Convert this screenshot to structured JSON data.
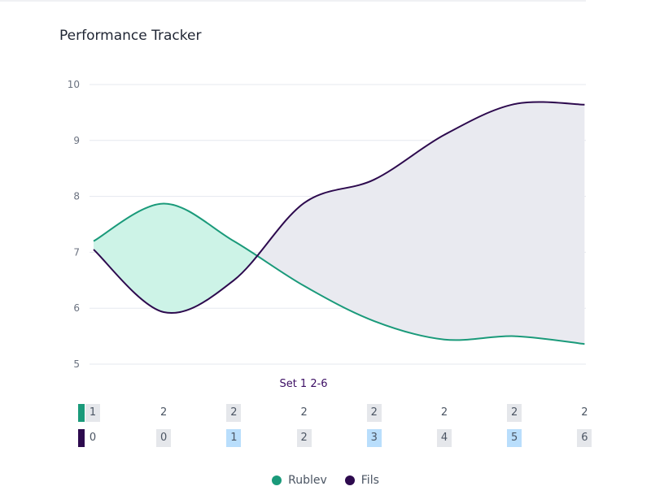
{
  "title": "Performance Tracker",
  "chart_data": {
    "type": "area",
    "title": "Performance Tracker",
    "xlabel": "Set 1 2-6",
    "ylim": [
      5,
      10
    ],
    "yticks": [
      5,
      6,
      7,
      8,
      9,
      10
    ],
    "series": [
      {
        "name": "Rublev",
        "color": "#1a9a7a",
        "values": [
          7.2,
          7.87,
          7.2,
          6.4,
          5.77,
          5.44,
          5.5,
          5.36
        ],
        "row": [
          "1",
          "2",
          "2",
          "2",
          "2",
          "2",
          "2",
          "2"
        ],
        "row_bg": [
          "g",
          "",
          "g",
          "",
          "g",
          "",
          "g",
          ""
        ]
      },
      {
        "name": "Fils",
        "color": "#2d0a4e",
        "values": [
          7.05,
          5.93,
          6.5,
          7.88,
          8.3,
          9.1,
          9.65,
          9.64
        ],
        "row": [
          "0",
          "0",
          "1",
          "2",
          "3",
          "4",
          "5",
          "6"
        ],
        "row_bg": [
          "",
          "g",
          "b",
          "g",
          "b",
          "g",
          "b",
          "g"
        ]
      }
    ],
    "fill_colors": {
      "rublev_ahead": "#cdf3e7",
      "fils_ahead": "#e9eaf0"
    },
    "legend_position": "bottom"
  }
}
